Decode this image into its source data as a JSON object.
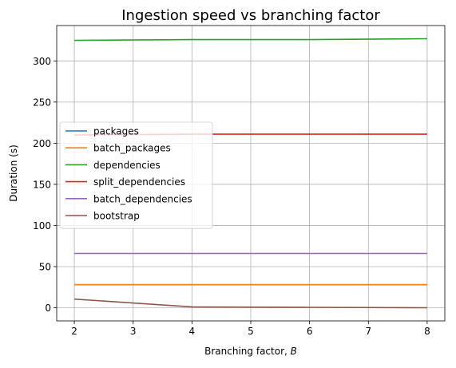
{
  "chart_data": {
    "type": "line",
    "title": "Ingestion speed vs branching factor",
    "xlabel": "Branching factor, ",
    "xlabel_var": "B",
    "ylabel": "Duration (s)",
    "x": [
      2,
      4,
      6,
      8
    ],
    "xlim": [
      1.7,
      8.3
    ],
    "ylim": [
      -16,
      343
    ],
    "xticks": [
      2,
      3,
      4,
      5,
      6,
      7,
      8
    ],
    "yticks": [
      0,
      50,
      100,
      150,
      200,
      250,
      300
    ],
    "grid": true,
    "legend_position": "center-left",
    "series": [
      {
        "name": "packages",
        "color": "#1f77b4",
        "values": [
          28,
          28,
          28,
          28
        ]
      },
      {
        "name": "batch_packages",
        "color": "#ff7f0e",
        "values": [
          28,
          28,
          28,
          28
        ]
      },
      {
        "name": "dependencies",
        "color": "#2ca02c",
        "values": [
          325,
          326,
          326,
          327
        ]
      },
      {
        "name": "split_dependencies",
        "color": "#d62728",
        "values": [
          210,
          211,
          211,
          211
        ]
      },
      {
        "name": "batch_dependencies",
        "color": "#9467bd",
        "values": [
          66,
          66,
          66,
          66
        ]
      },
      {
        "name": "bootstrap",
        "color": "#8c564b",
        "values": [
          10.5,
          1,
          0.5,
          0
        ]
      }
    ]
  }
}
